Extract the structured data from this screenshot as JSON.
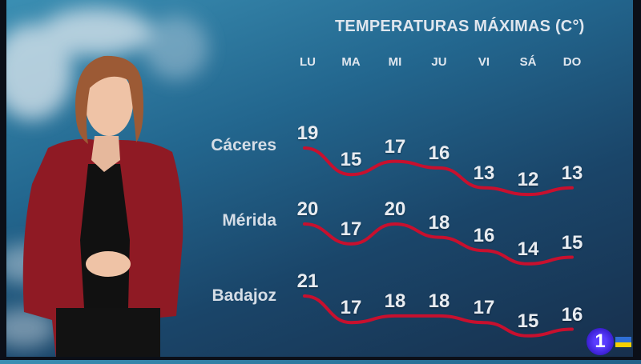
{
  "chart_data": {
    "type": "line",
    "title": "TEMPERATURAS MÁXIMAS (C°)",
    "categories": [
      "LU",
      "MA",
      "MI",
      "JU",
      "VI",
      "SÁ",
      "DO"
    ],
    "series": [
      {
        "name": "Cáceres",
        "values": [
          19,
          15,
          17,
          16,
          13,
          12,
          13
        ]
      },
      {
        "name": "Mérida",
        "values": [
          20,
          17,
          20,
          18,
          16,
          14,
          15
        ]
      },
      {
        "name": "Badajoz",
        "values": [
          21,
          17,
          18,
          18,
          17,
          15,
          16
        ]
      }
    ],
    "line_color": "#c8102e",
    "grid": false
  },
  "overlay": {
    "channel_logo": "1"
  }
}
